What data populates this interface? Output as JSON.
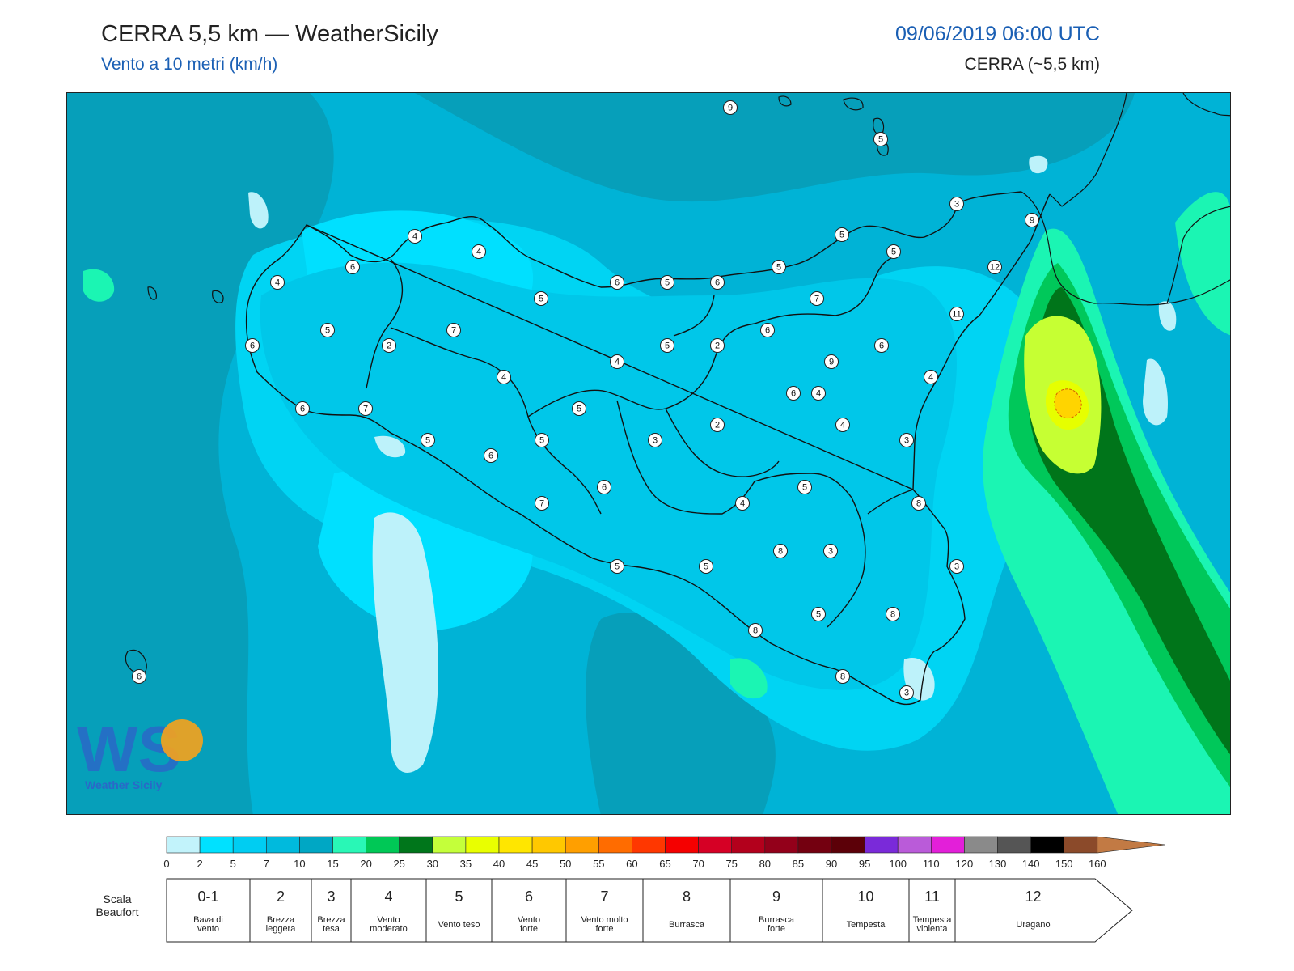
{
  "header": {
    "title": "CERRA 5,5 km — WeatherSicily",
    "subtitle": "Vento a 10 metri (km/h)",
    "datetime": "09/06/2019 06:00 UTC",
    "model": "CERRA (~5,5 km)"
  },
  "logo": {
    "text": "Weather Sicily",
    "letters": "WS"
  },
  "palette": {
    "c0": "#bdf2fa",
    "c2": "#00e0ff",
    "c5": "#00cdf0",
    "c7": "#00b6d9",
    "c10": "#009fb9",
    "c15": "#1bf5b3",
    "c20": "#00c85a",
    "c25": "#00751a",
    "c30": "#c6ff33",
    "c35": "#e6ff00",
    "c40": "#ffe100",
    "c45": "#ffc700",
    "coast": "#111111"
  },
  "colorbar": {
    "ticks": [
      "0",
      "2",
      "5",
      "7",
      "10",
      "15",
      "20",
      "25",
      "30",
      "35",
      "40",
      "45",
      "50",
      "55",
      "60",
      "65",
      "70",
      "75",
      "80",
      "85",
      "90",
      "95",
      "100",
      "110",
      "120",
      "130",
      "140",
      "150",
      "160"
    ],
    "colors": [
      "#c2f3fb",
      "#00e1ff",
      "#00cdf2",
      "#00badd",
      "#00a7c4",
      "#29f7b6",
      "#00c856",
      "#00761b",
      "#c4ff3a",
      "#e9ff00",
      "#ffe600",
      "#ffc800",
      "#ff9f00",
      "#ff6c00",
      "#ff3700",
      "#f50000",
      "#d60025",
      "#b3001c",
      "#93001a",
      "#740010",
      "#5c0008",
      "#7a2ad9",
      "#ba5bd9",
      "#e31fd9",
      "#8a8a8a",
      "#555555",
      "#000000",
      "#8b4a2a",
      "#c27a44"
    ]
  },
  "beaufort": {
    "label_line1": "Scala",
    "label_line2": "Beaufort",
    "levels": [
      {
        "num": "0-1",
        "name": [
          "Bava di",
          "vento"
        ]
      },
      {
        "num": "2",
        "name": [
          "Brezza",
          "leggera"
        ]
      },
      {
        "num": "3",
        "name": [
          "Brezza",
          "tesa"
        ]
      },
      {
        "num": "4",
        "name": [
          "Vento",
          "moderato"
        ]
      },
      {
        "num": "5",
        "name": [
          "Vento teso"
        ]
      },
      {
        "num": "6",
        "name": [
          "Vento",
          "forte"
        ]
      },
      {
        "num": "7",
        "name": [
          "Vento molto",
          "forte"
        ]
      },
      {
        "num": "8",
        "name": [
          "Burrasca"
        ]
      },
      {
        "num": "9",
        "name": [
          "Burrasca",
          "forte"
        ]
      },
      {
        "num": "10",
        "name": [
          "Tempesta"
        ]
      },
      {
        "num": "11",
        "name": [
          "Tempesta",
          "violenta"
        ]
      },
      {
        "num": "12",
        "name": [
          "Uragano"
        ]
      }
    ]
  },
  "stations": [
    "9",
    "5",
    "3",
    "9",
    "12",
    "11",
    "5",
    "5",
    "4",
    "4",
    "6",
    "4",
    "5",
    "6",
    "5",
    "6",
    "5",
    "7",
    "5",
    "7",
    "4",
    "5",
    "6",
    "2",
    "6",
    "4",
    "2",
    "9",
    "6",
    "4",
    "6",
    "7",
    "5",
    "4",
    "6",
    "5",
    "3",
    "2",
    "4",
    "3",
    "6",
    "5",
    "7",
    "5",
    "4",
    "8",
    "6",
    "8",
    "3",
    "3",
    "5",
    "5",
    "5",
    "8",
    "8",
    "8",
    "3",
    "6"
  ]
}
